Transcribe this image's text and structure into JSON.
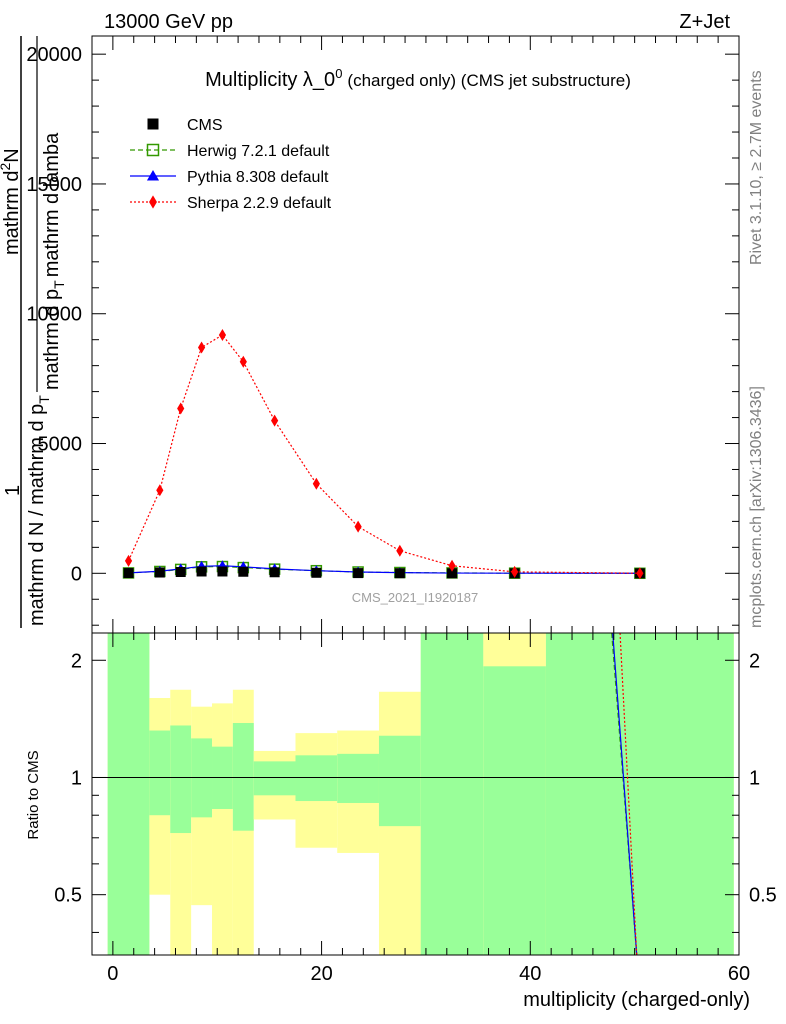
{
  "header": {
    "left": "13000 GeV pp",
    "right": "Z+Jet"
  },
  "side_labels": {
    "rivet": "Rivet 3.1.10, ≥ 2.7M events",
    "mcplots": "mcplots.cern.ch [arXiv:1306.3436]"
  },
  "chart_data": [
    {
      "type": "line",
      "title": "Multiplicity λ_0",
      "title_sup": "0",
      "title_suffix": "(charged only) (CMS jet substructure)",
      "ylabel_parts": [
        "1",
        "mathrm d N / mathrm d p",
        "T",
        "mathrm d p",
        "T",
        "mathrm d lamba",
        "mathrm d",
        "2",
        "N"
      ],
      "watermark": "CMS_2021_I1920187",
      "xlim": [
        -2,
        60
      ],
      "ylim": [
        -2300,
        20700
      ],
      "yticks": [
        0,
        5000,
        10000,
        15000,
        20000
      ],
      "ytick_labels": [
        "0",
        "5000",
        "10000",
        "15000",
        "20000"
      ],
      "legend_position": "top-left",
      "series": [
        {
          "name": "CMS",
          "color": "#000000",
          "marker": "square",
          "line": "none",
          "x": [
            1.5,
            4.5,
            6.5,
            8.5,
            10.5,
            12.5,
            15.5,
            19.5,
            23.5,
            27.5,
            32.5,
            38.5,
            50.5
          ],
          "y": [
            10,
            30,
            50,
            70,
            70,
            60,
            40,
            20,
            8,
            3,
            1,
            0.3,
            0.05
          ]
        },
        {
          "name": "Herwig 7.2.1 default",
          "color": "#339900",
          "marker": "open-square",
          "line": "dashed",
          "x": [
            1.5,
            4.5,
            6.5,
            8.5,
            10.5,
            12.5,
            15.5,
            19.5,
            23.5,
            27.5,
            32.5,
            38.5,
            50.5
          ],
          "y": [
            15,
            70,
            150,
            250,
            260,
            220,
            160,
            100,
            50,
            30,
            15,
            5,
            1
          ]
        },
        {
          "name": "Pythia 8.308 default",
          "color": "#0000ff",
          "marker": "triangle",
          "line": "solid",
          "x": [
            1.5,
            4.5,
            6.5,
            8.5,
            10.5,
            12.5,
            15.5,
            19.5,
            23.5,
            27.5,
            32.5,
            38.5,
            50.5
          ],
          "y": [
            15,
            80,
            170,
            270,
            290,
            250,
            170,
            100,
            50,
            25,
            10,
            4,
            1
          ]
        },
        {
          "name": "Sherpa 2.2.9 default",
          "color": "#ff0000",
          "marker": "diamond",
          "line": "dotted",
          "x": [
            1.5,
            4.5,
            6.5,
            8.5,
            10.5,
            12.5,
            15.5,
            19.5,
            23.5,
            27.5,
            32.5,
            38.5,
            50.5
          ],
          "y": [
            480,
            3200,
            6350,
            8700,
            9180,
            8150,
            5880,
            3450,
            1800,
            870,
            290,
            55,
            3
          ]
        }
      ]
    },
    {
      "type": "area",
      "ylabel": "Ratio to CMS",
      "xlabel": "multiplicity (charged-only)",
      "xlim": [
        -2,
        60
      ],
      "ylim": [
        0.35,
        2.35
      ],
      "xticks": [
        0,
        20,
        40,
        60
      ],
      "yticks": [
        0.5,
        1,
        2
      ],
      "ytick_labels": [
        "0.5",
        "1",
        "2"
      ],
      "reference": 1,
      "bins": [
        {
          "x0": -0.5,
          "x1": 3.5,
          "yel_lo": 0.35,
          "yel_hi": 2.35,
          "grn_lo": 0.35,
          "grn_hi": 2.35
        },
        {
          "x0": 3.5,
          "x1": 5.5,
          "yel_lo": 0.5,
          "yel_hi": 1.6,
          "grn_lo": 0.8,
          "grn_hi": 1.32
        },
        {
          "x0": 5.5,
          "x1": 7.5,
          "yel_lo": 0.35,
          "yel_hi": 1.68,
          "grn_lo": 0.72,
          "grn_hi": 1.36
        },
        {
          "x0": 7.5,
          "x1": 9.5,
          "yel_lo": 0.47,
          "yel_hi": 1.52,
          "grn_lo": 0.79,
          "grn_hi": 1.26
        },
        {
          "x0": 9.5,
          "x1": 11.5,
          "yel_lo": 0.35,
          "yel_hi": 1.55,
          "grn_lo": 0.83,
          "grn_hi": 1.2
        },
        {
          "x0": 11.5,
          "x1": 13.5,
          "yel_lo": 0.35,
          "yel_hi": 1.68,
          "grn_lo": 0.73,
          "grn_hi": 1.38
        },
        {
          "x0": 13.5,
          "x1": 17.5,
          "yel_lo": 0.78,
          "yel_hi": 1.17,
          "grn_lo": 0.9,
          "grn_hi": 1.1
        },
        {
          "x0": 17.5,
          "x1": 21.5,
          "yel_lo": 0.66,
          "yel_hi": 1.3,
          "grn_lo": 0.87,
          "grn_hi": 1.14
        },
        {
          "x0": 21.5,
          "x1": 25.5,
          "yel_lo": 0.64,
          "yel_hi": 1.32,
          "grn_lo": 0.86,
          "grn_hi": 1.15
        },
        {
          "x0": 25.5,
          "x1": 29.5,
          "yel_lo": 0.35,
          "yel_hi": 1.66,
          "grn_lo": 0.75,
          "grn_hi": 1.28
        },
        {
          "x0": 29.5,
          "x1": 35.5,
          "yel_lo": 0.35,
          "yel_hi": 2.35,
          "grn_lo": 0.35,
          "grn_hi": 2.35
        },
        {
          "x0": 35.5,
          "x1": 41.5,
          "yel_lo": 0.35,
          "yel_hi": 2.35,
          "grn_lo": 0.35,
          "grn_hi": 1.93
        },
        {
          "x0": 41.5,
          "x1": 59.5,
          "yel_lo": 0.35,
          "yel_hi": 2.35,
          "grn_lo": 0.35,
          "grn_hi": 2.35
        }
      ],
      "lines": [
        {
          "name": "Herwig",
          "color": "#339900",
          "style": "dashed",
          "x": [
            47.8,
            50.2
          ],
          "y": [
            2.35,
            0.35
          ]
        },
        {
          "name": "Pythia",
          "color": "#0000ff",
          "style": "solid",
          "x": [
            47.9,
            50.2
          ],
          "y": [
            2.35,
            0.35
          ]
        },
        {
          "name": "Sherpa",
          "color": "#ff0000",
          "style": "dotted",
          "x": [
            48.6,
            50.2
          ],
          "y": [
            2.35,
            0.35
          ]
        }
      ]
    }
  ],
  "colors": {
    "band_green": "#99ff99",
    "band_yellow": "#ffff99"
  }
}
